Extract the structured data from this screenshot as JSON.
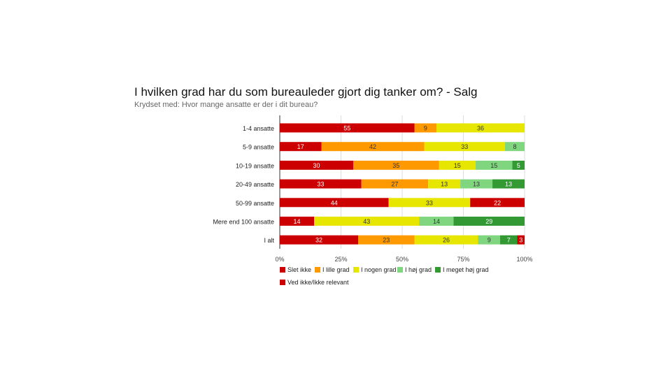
{
  "chart_data": {
    "type": "bar",
    "orientation": "horizontal",
    "stacked": true,
    "percent_stacked": true,
    "title": "I hvilken grad har du som bureauleder gjort dig tanker om? - Salg",
    "subtitle": "Krydset med: Hvor mange ansatte er der i dit bureau?",
    "xlabel": "",
    "ylabel": "",
    "xlim": [
      0,
      100
    ],
    "x_ticks": [
      "0%",
      "25%",
      "50%",
      "75%",
      "100%"
    ],
    "categories": [
      "1-4 ansatte",
      "5-9 ansatte",
      "10-19 ansatte",
      "20-49 ansatte",
      "50-99 ansatte",
      "Mere end 100 ansatte",
      "I alt"
    ],
    "series": [
      {
        "name": "Slet ikke",
        "color": "#cc0000",
        "values": [
          55,
          17,
          30,
          33,
          44,
          14,
          32
        ]
      },
      {
        "name": "I lille grad",
        "color": "#ff9900",
        "values": [
          9,
          42,
          35,
          27,
          0,
          0,
          23
        ]
      },
      {
        "name": "I nogen grad",
        "color": "#e6e600",
        "values": [
          36,
          33,
          15,
          13,
          33,
          43,
          26
        ]
      },
      {
        "name": "I høj grad",
        "color": "#7fd67f",
        "values": [
          0,
          8,
          15,
          13,
          0,
          14,
          9
        ]
      },
      {
        "name": "I meget høj grad",
        "color": "#339933",
        "values": [
          0,
          0,
          5,
          13,
          0,
          29,
          7
        ]
      },
      {
        "name": "Ved ikke/Ikke relevant",
        "color": "#cc0000",
        "values": [
          0,
          0,
          0,
          0,
          22,
          0,
          3
        ]
      }
    ],
    "legend_position": "bottom",
    "grid": true
  }
}
